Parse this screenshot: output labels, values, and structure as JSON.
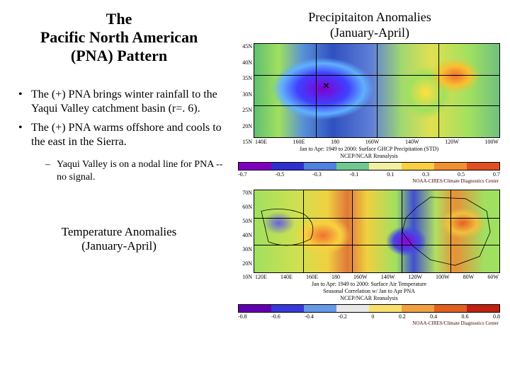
{
  "left": {
    "title_l1": "The",
    "title_l2": "Pacific North American",
    "title_l3": "(PNA)  Pattern",
    "bullet1": "The (+) PNA brings winter rainfall to the Yaqui Valley catchment basin (r=. 6).",
    "bullet2": "The (+) PNA warms offshore and cools to the east in the Sierra.",
    "sub1": "Yaqui Valley is on a nodal line for PNA -- no signal.",
    "temp_label_l1": "Temperature Anomalies",
    "temp_label_l2": "(January-April)"
  },
  "right": {
    "precip_label_l1": "Precipitaiton Anomalies",
    "precip_label_l2": "(January-April)"
  },
  "map1": {
    "h": 134,
    "y_ticks": [
      "45N",
      "40N",
      "35N",
      "30N",
      "25N",
      "20N",
      "15N"
    ],
    "x_ticks": [
      "140E",
      "160E",
      "180",
      "160W",
      "140W",
      "120W",
      "100W"
    ],
    "caption_l1": "Jan to Apr: 1949 to 2000: Surface GHCP Precipitation (STD)",
    "caption_l2": "NCEP/NCAR Reanalysis",
    "credit": "NOAA-CIRES/Climate Diagnostics Center",
    "colorbar": [
      "#8000c0",
      "#3030d0",
      "#5080e0",
      "#70c890",
      "#f0f0a0",
      "#f8d040",
      "#f09030",
      "#e05020"
    ],
    "colorbar_labels": [
      "-0.7",
      "-0.5",
      "-0.3",
      "-0.1",
      "0.1",
      "0.3",
      "0.5",
      "0.7"
    ]
  },
  "map2": {
    "h": 118,
    "y_ticks": [
      "70N",
      "60N",
      "50N",
      "40N",
      "30N",
      "20N",
      "10N"
    ],
    "x_ticks": [
      "120E",
      "140E",
      "160E",
      "180",
      "160W",
      "140W",
      "120W",
      "100W",
      "80W",
      "60W"
    ],
    "caption_l1": "Jan to Apr: 1949 to 2000: Surface Air Temperature",
    "caption_l2": "Seasonal Correlation w/ Jan to Apr PNA",
    "caption_l3": "NCEP/NCAR Reanalysis",
    "credit": "NOAA-CIRES/Climate Diagnostics Center",
    "colorbar": [
      "#6000b0",
      "#3838d8",
      "#6898e8",
      "#e8e8e8",
      "#f8e070",
      "#f0a040",
      "#e06020",
      "#c02010"
    ],
    "colorbar_labels": [
      "-0.8",
      "-0.6",
      "-0.4",
      "-0.2",
      "0",
      "0.2",
      "0.4",
      "0.6",
      "0.8"
    ]
  }
}
